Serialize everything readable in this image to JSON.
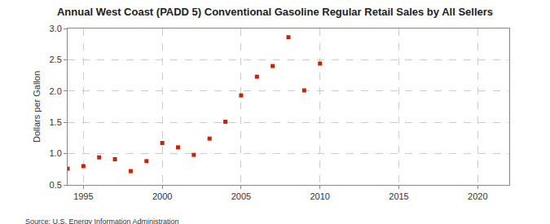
{
  "chart_data": {
    "type": "scatter",
    "title": "Annual West Coast (PADD 5) Conventional Gasoline Regular Retail Sales by All Sellers",
    "y_label": "Dollars per Gallon",
    "annotations": [
      "Source: U.S. Energy Information Administration"
    ],
    "x": [
      1994,
      1995,
      1996,
      1997,
      1998,
      1999,
      2000,
      2001,
      2002,
      2003,
      2004,
      2005,
      2006,
      2007,
      2008,
      2009,
      2010
    ],
    "values": [
      0.76,
      0.8,
      0.94,
      0.91,
      0.72,
      0.88,
      1.17,
      1.1,
      0.98,
      1.24,
      1.51,
      1.93,
      2.23,
      2.4,
      2.86,
      2.01,
      2.44
    ],
    "color": "#cc2200",
    "marker": "square",
    "xlim": [
      1994,
      2022
    ],
    "xticks": [
      1995,
      2000,
      2005,
      2010,
      2015,
      2020
    ],
    "ylim": [
      0.5,
      3.0
    ],
    "yticks": [
      0.5,
      {
        "value": 1.0,
        "label": "1.0"
      },
      1.5,
      {
        "value": 2.0,
        "label": "2.0"
      },
      2.5,
      {
        "value": 3.0,
        "label": "3.0"
      }
    ],
    "grid": true
  }
}
